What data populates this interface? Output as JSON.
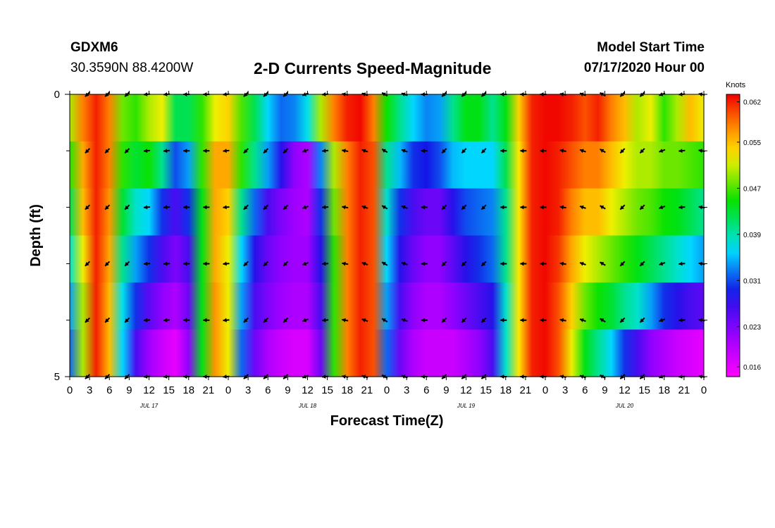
{
  "header": {
    "station_id": "GDXM6",
    "station_coords": "30.3590N 88.4200W",
    "title": "2-D Currents Speed-Magnitude",
    "start_time_label": "Model Start Time",
    "start_time_value": "07/17/2020 Hour 00"
  },
  "chart_data": {
    "type": "heatmap",
    "title": "2-D Currents Speed-Magnitude",
    "xlabel": "Forecast Time(Z)",
    "ylabel": "Depth (ft)",
    "x_tick_labels": [
      "0",
      "3",
      "6",
      "9",
      "12",
      "15",
      "18",
      "21",
      "0",
      "3",
      "6",
      "9",
      "12",
      "15",
      "18",
      "21",
      "0",
      "3",
      "6",
      "9",
      "12",
      "15",
      "18",
      "21",
      "0",
      "3",
      "6",
      "9",
      "12",
      "15",
      "18",
      "21",
      "0"
    ],
    "date_labels": [
      "JUL 17",
      "JUL 18",
      "JUL 19",
      "JUL 20"
    ],
    "y_tick_labels": [
      "0",
      "5"
    ],
    "ylim": [
      0,
      5
    ],
    "xlim_hours": [
      0,
      96
    ],
    "colorbar": {
      "unit": "Knots",
      "tick_labels": [
        "0.062",
        "0.055",
        "0.047",
        "0.039",
        "0.031",
        "0.023",
        "0.016"
      ],
      "range": [
        0.0143,
        0.0633
      ]
    },
    "depth_levels": [
      0,
      1,
      2,
      3,
      4,
      5
    ],
    "speed_profiles": [
      {
        "depth": 0,
        "speeds": [
          0.05,
          0.058,
          0.062,
          0.058,
          0.048,
          0.046,
          0.05,
          0.052,
          0.042,
          0.042,
          0.046,
          0.052,
          0.054,
          0.047,
          0.042,
          0.036,
          0.032,
          0.033,
          0.037,
          0.05,
          0.058,
          0.062,
          0.063,
          0.058,
          0.045,
          0.04,
          0.036,
          0.033,
          0.034,
          0.04,
          0.044,
          0.044,
          0.04,
          0.044,
          0.054,
          0.062,
          0.063,
          0.063,
          0.062,
          0.06,
          0.062,
          0.058,
          0.055,
          0.05,
          0.052,
          0.046,
          0.05,
          0.055,
          0.052
        ]
      },
      {
        "depth": 1,
        "speeds": [
          0.046,
          0.056,
          0.062,
          0.058,
          0.046,
          0.043,
          0.045,
          0.04,
          0.031,
          0.034,
          0.046,
          0.056,
          0.056,
          0.046,
          0.04,
          0.034,
          0.028,
          0.022,
          0.02,
          0.033,
          0.05,
          0.058,
          0.062,
          0.06,
          0.04,
          0.035,
          0.03,
          0.029,
          0.031,
          0.035,
          0.036,
          0.036,
          0.036,
          0.042,
          0.053,
          0.062,
          0.063,
          0.062,
          0.06,
          0.058,
          0.058,
          0.055,
          0.052,
          0.05,
          0.05,
          0.048,
          0.048,
          0.047,
          0.046
        ]
      },
      {
        "depth": 2,
        "speeds": [
          0.042,
          0.055,
          0.062,
          0.057,
          0.043,
          0.038,
          0.036,
          0.03,
          0.026,
          0.03,
          0.044,
          0.056,
          0.054,
          0.04,
          0.032,
          0.026,
          0.023,
          0.021,
          0.02,
          0.03,
          0.048,
          0.058,
          0.062,
          0.06,
          0.038,
          0.03,
          0.026,
          0.024,
          0.024,
          0.028,
          0.031,
          0.032,
          0.033,
          0.04,
          0.053,
          0.062,
          0.063,
          0.062,
          0.058,
          0.055,
          0.055,
          0.052,
          0.05,
          0.048,
          0.047,
          0.045,
          0.044,
          0.042,
          0.04
        ]
      },
      {
        "depth": 3,
        "speeds": [
          0.038,
          0.052,
          0.062,
          0.056,
          0.04,
          0.034,
          0.03,
          0.026,
          0.023,
          0.026,
          0.044,
          0.056,
          0.052,
          0.036,
          0.028,
          0.024,
          0.022,
          0.021,
          0.021,
          0.028,
          0.046,
          0.058,
          0.062,
          0.06,
          0.036,
          0.028,
          0.024,
          0.022,
          0.022,
          0.025,
          0.028,
          0.03,
          0.032,
          0.04,
          0.053,
          0.062,
          0.063,
          0.061,
          0.056,
          0.052,
          0.05,
          0.048,
          0.046,
          0.044,
          0.042,
          0.04,
          0.038,
          0.036,
          0.034
        ]
      },
      {
        "depth": 4,
        "speeds": [
          0.034,
          0.05,
          0.062,
          0.055,
          0.037,
          0.03,
          0.025,
          0.022,
          0.02,
          0.024,
          0.044,
          0.057,
          0.052,
          0.034,
          0.026,
          0.023,
          0.021,
          0.02,
          0.02,
          0.026,
          0.046,
          0.058,
          0.062,
          0.06,
          0.034,
          0.026,
          0.022,
          0.02,
          0.02,
          0.022,
          0.024,
          0.026,
          0.028,
          0.038,
          0.053,
          0.062,
          0.063,
          0.06,
          0.054,
          0.048,
          0.045,
          0.043,
          0.04,
          0.038,
          0.034,
          0.03,
          0.028,
          0.026,
          0.025
        ]
      },
      {
        "depth": 5,
        "speeds": [
          0.032,
          0.05,
          0.062,
          0.055,
          0.036,
          0.026,
          0.021,
          0.018,
          0.016,
          0.022,
          0.044,
          0.057,
          0.052,
          0.032,
          0.024,
          0.02,
          0.018,
          0.017,
          0.017,
          0.024,
          0.046,
          0.058,
          0.062,
          0.06,
          0.032,
          0.024,
          0.02,
          0.018,
          0.018,
          0.018,
          0.02,
          0.022,
          0.026,
          0.038,
          0.053,
          0.062,
          0.063,
          0.06,
          0.052,
          0.044,
          0.04,
          0.036,
          0.03,
          0.026,
          0.022,
          0.02,
          0.018,
          0.017,
          0.016
        ]
      }
    ],
    "arrow_hours": [
      3,
      6,
      9,
      12,
      15,
      18,
      21,
      24,
      27,
      30,
      33,
      36,
      39,
      42,
      45,
      48,
      51,
      54,
      57,
      60,
      63,
      66,
      69,
      72,
      75,
      78,
      81,
      84,
      87,
      90,
      93,
      96
    ],
    "arrow_directions_deg": [
      45,
      45,
      45,
      85,
      85,
      90,
      90,
      85,
      45,
      45,
      45,
      70,
      85,
      100,
      110,
      120,
      110,
      90,
      45,
      45,
      45,
      90,
      90,
      90,
      100,
      110,
      120,
      45,
      45,
      70,
      85,
      100
    ],
    "arrow_depths": [
      0,
      1,
      2,
      3,
      4,
      5
    ]
  }
}
